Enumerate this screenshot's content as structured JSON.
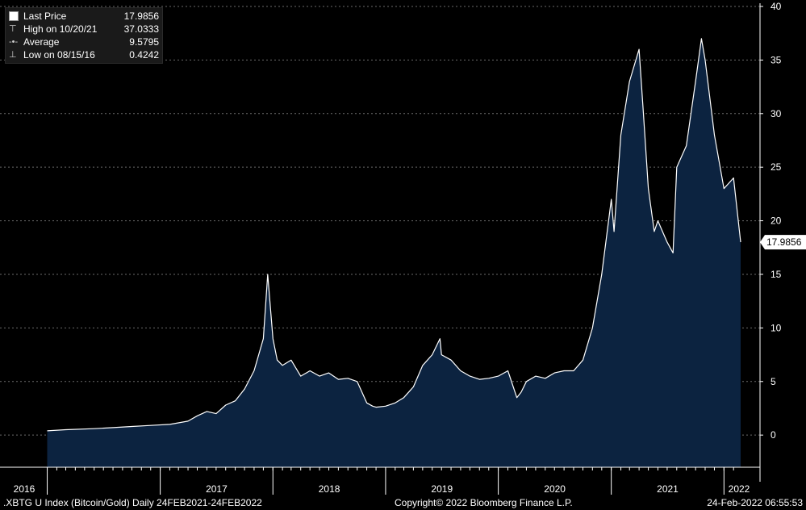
{
  "legend": {
    "rows": [
      {
        "icon": "white-square-icon",
        "label": "Last Price",
        "value": "17.9856"
      },
      {
        "icon": "high-marker-icon",
        "label": "High on 10/20/21",
        "value": "37.0333"
      },
      {
        "icon": "average-line-icon",
        "label": "Average",
        "value": "9.5795"
      },
      {
        "icon": "low-marker-icon",
        "label": "Low on 08/15/16",
        "value": "0.4242"
      }
    ]
  },
  "last_price_tag": "17.9856",
  "footer": {
    "left": ".XBTG U Index (Bitcoin/Gold)  Daily 24FEB2021-24FEB2022",
    "center": "Copyright© 2022 Bloomberg Finance L.P.",
    "right": "24-Feb-2022 06:55:53"
  },
  "colors": {
    "background": "#000000",
    "area_fill": "#0c2340",
    "line": "#ffffff",
    "gridline": "#6a6a6a"
  },
  "chart_data": {
    "type": "area",
    "series": [
      {
        "x": [
          "2016-01",
          "2016-03",
          "2016-06",
          "2016-08",
          "2016-10",
          "2016-12",
          "2017-02",
          "2017-04",
          "2017-05",
          "2017-06",
          "2017-07",
          "2017-08",
          "2017-09",
          "2017-10",
          "2017-11",
          "2017-12",
          "2017-12-15",
          "2018-01",
          "2018-01-15",
          "2018-02",
          "2018-03",
          "2018-04",
          "2018-05",
          "2018-06",
          "2018-07",
          "2018-08",
          "2018-09",
          "2018-10",
          "2018-11",
          "2018-11-20",
          "2018-12",
          "2019-01",
          "2019-02",
          "2019-03",
          "2019-04",
          "2019-05",
          "2019-06",
          "2019-06-26",
          "2019-07",
          "2019-08",
          "2019-09",
          "2019-10",
          "2019-11",
          "2019-12",
          "2020-01",
          "2020-02",
          "2020-03",
          "2020-03-15",
          "2020-04",
          "2020-05",
          "2020-06",
          "2020-07",
          "2020-08",
          "2020-09",
          "2020-10",
          "2020-11",
          "2020-12",
          "2021-01",
          "2021-01-10",
          "2021-02",
          "2021-03",
          "2021-04",
          "2021-04-15",
          "2021-05",
          "2021-05-20",
          "2021-06",
          "2021-07",
          "2021-07-20",
          "2021-08",
          "2021-09",
          "2021-10",
          "2021-10-20",
          "2021-11",
          "2021-12",
          "2022-01",
          "2022-02",
          "2022-02-24"
        ],
        "values": [
          0.4,
          0.5,
          0.6,
          0.7,
          0.8,
          0.9,
          1.0,
          1.3,
          1.8,
          2.2,
          2.0,
          2.8,
          3.2,
          4.3,
          6.0,
          9.0,
          15.0,
          9.0,
          7.0,
          6.5,
          7.0,
          5.5,
          6.0,
          5.5,
          5.8,
          5.2,
          5.3,
          5.0,
          3.0,
          2.7,
          2.6,
          2.7,
          3.0,
          3.5,
          4.5,
          6.5,
          7.5,
          9.0,
          7.5,
          7.0,
          6.0,
          5.5,
          5.2,
          5.3,
          5.5,
          6.0,
          3.5,
          4.0,
          5.0,
          5.5,
          5.3,
          5.8,
          6.0,
          6.0,
          7.0,
          10.0,
          15.0,
          22.0,
          19.0,
          28.0,
          33.0,
          36.0,
          30.0,
          23.0,
          19.0,
          20.0,
          18.0,
          17.0,
          25.0,
          27.0,
          33.0,
          37.0,
          35.0,
          28.0,
          23.0,
          24.0,
          18.0
        ]
      }
    ],
    "ylim": [
      -3,
      40
    ],
    "yticks": [
      0,
      5,
      10,
      15,
      20,
      25,
      30,
      35,
      40
    ],
    "xticks": [
      "2016",
      "2017",
      "2018",
      "2019",
      "2020",
      "2021",
      "2022"
    ],
    "grid": true,
    "y_axis_side": "right",
    "title": ""
  }
}
